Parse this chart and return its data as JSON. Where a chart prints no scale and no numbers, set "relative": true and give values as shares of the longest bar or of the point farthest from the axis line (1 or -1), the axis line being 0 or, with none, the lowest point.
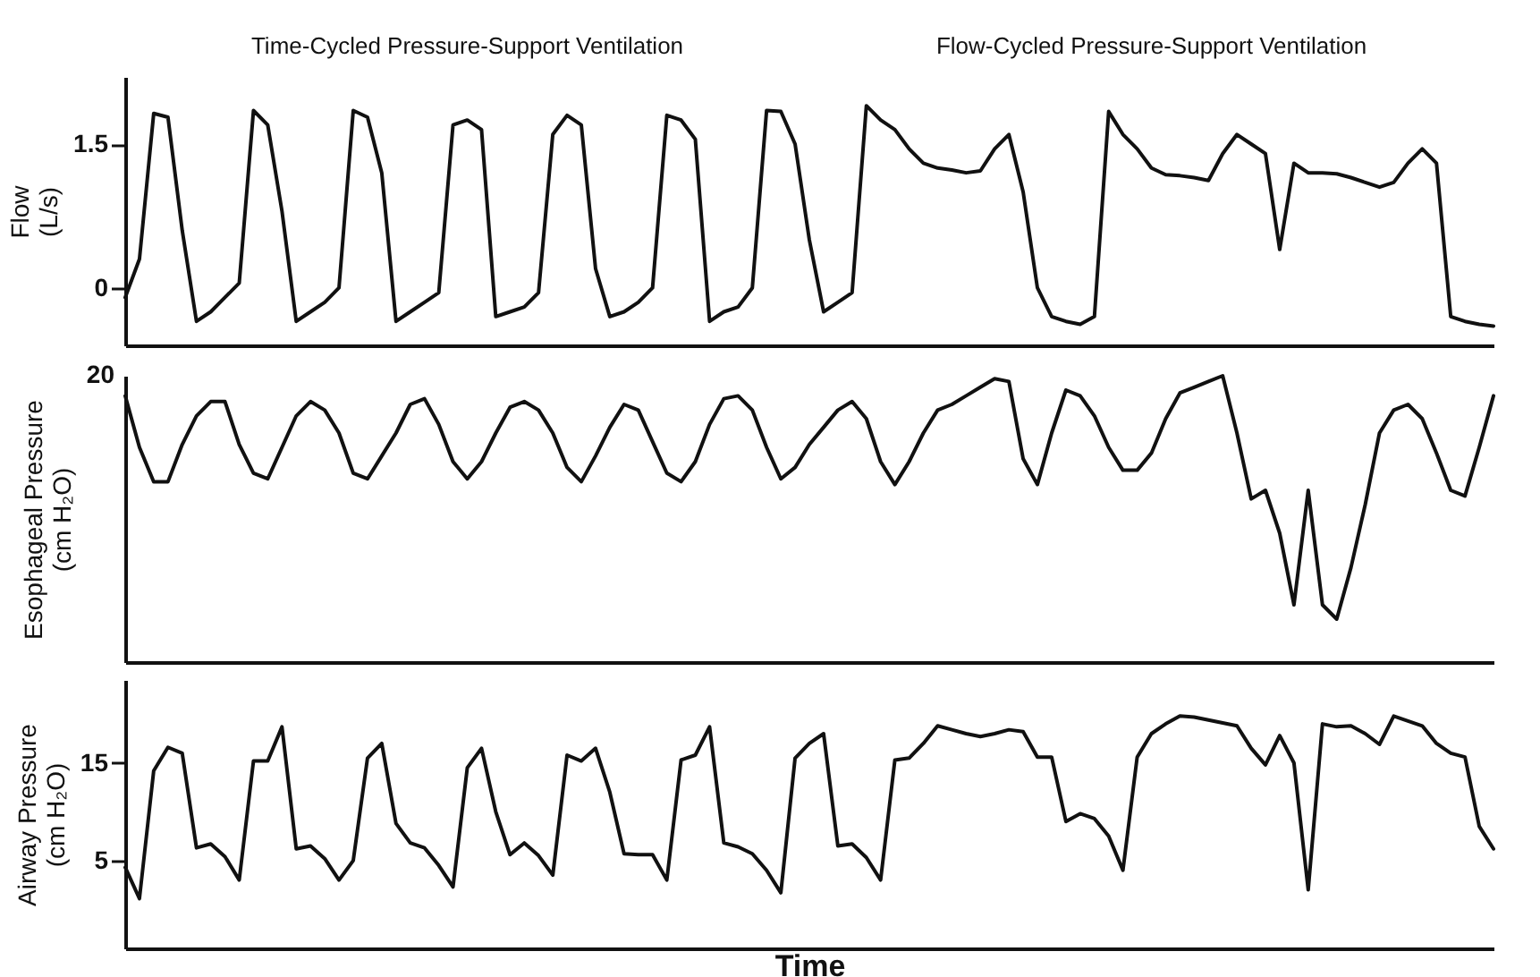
{
  "chart_data": [
    {
      "type": "line",
      "ylabel": "Flow\n(L/s)",
      "annotations": [
        "Time-Cycled Pressure-Support Ventilation",
        "Flow-Cycled Pressure-Support Ventilation"
      ],
      "tick_labels": "y",
      "ylim": [
        -0.6,
        2.2
      ],
      "yticks": [
        0,
        1.5
      ],
      "categories": [
        null,
        null,
        null,
        null,
        null,
        null,
        null,
        null,
        null,
        null,
        null,
        null,
        null,
        null,
        null,
        null,
        null,
        null,
        null,
        null,
        null,
        null,
        null,
        null,
        null,
        null,
        null,
        null,
        null,
        null,
        null,
        null,
        null,
        null,
        null,
        null,
        null,
        null,
        null,
        null,
        null,
        null,
        null,
        null,
        null,
        null,
        null,
        null,
        null,
        null,
        null,
        null,
        null,
        null,
        null,
        null,
        null,
        null,
        null,
        null,
        null,
        null,
        null,
        null,
        null,
        null,
        null,
        null,
        null,
        null,
        null,
        null,
        null,
        null,
        null,
        null,
        null,
        null,
        null,
        null,
        null,
        null,
        null,
        null,
        null,
        null,
        null,
        null,
        null,
        null,
        null,
        null,
        null,
        null,
        null,
        null,
        null
      ],
      "color": "#111111",
      "values": [
        -0.1,
        0.3,
        1.82,
        1.78,
        0.6,
        -0.35,
        -0.25,
        -0.1,
        0.05,
        1.85,
        1.7,
        0.8,
        -0.35,
        -0.25,
        -0.15,
        0.0,
        1.85,
        1.78,
        1.2,
        -0.35,
        -0.25,
        -0.15,
        -0.05,
        1.7,
        1.75,
        1.65,
        -0.3,
        -0.25,
        -0.2,
        -0.05,
        1.6,
        1.8,
        1.7,
        0.2,
        -0.3,
        -0.25,
        -0.15,
        0.0,
        1.8,
        1.75,
        1.55,
        -0.35,
        -0.25,
        -0.2,
        0.0,
        1.85,
        1.84,
        1.5,
        0.5,
        -0.25,
        -0.15,
        -0.05,
        1.9,
        1.75,
        1.65,
        1.45,
        1.3,
        1.25,
        1.23,
        1.2,
        1.22,
        1.45,
        1.6,
        1.0,
        0.0,
        -0.3,
        -0.35,
        -0.38,
        -0.3,
        1.84,
        1.6,
        1.45,
        1.25,
        1.18,
        1.17,
        1.15,
        1.12,
        1.4,
        1.6,
        1.5,
        1.4,
        0.4,
        1.3,
        1.2,
        1.2,
        1.19,
        1.15,
        1.1,
        1.05,
        1.1,
        1.3,
        1.45,
        1.3,
        -0.3,
        -0.35,
        -0.38,
        -0.4
      ]
    },
    {
      "type": "line",
      "ylabel": "Esophageal Pressure\n(cm H₂O)",
      "relative": true,
      "tick_labels": false,
      "annotations": [
        "20"
      ],
      "categories": [
        null,
        null,
        null,
        null,
        null,
        null,
        null,
        null,
        null,
        null,
        null,
        null,
        null,
        null,
        null,
        null,
        null,
        null,
        null,
        null,
        null,
        null,
        null,
        null,
        null,
        null,
        null,
        null,
        null,
        null,
        null,
        null,
        null,
        null,
        null,
        null,
        null,
        null,
        null,
        null,
        null,
        null,
        null,
        null,
        null,
        null,
        null,
        null,
        null,
        null,
        null,
        null,
        null,
        null,
        null,
        null,
        null,
        null,
        null,
        null,
        null,
        null,
        null,
        null,
        null,
        null,
        null,
        null,
        null,
        null,
        null,
        null,
        null,
        null,
        null,
        null,
        null,
        null,
        null,
        null,
        null,
        null,
        null,
        null,
        null,
        null,
        null,
        null,
        null,
        null,
        null,
        null,
        null,
        null,
        null,
        null,
        null
      ],
      "color": "#111111",
      "values": [
        0.93,
        0.75,
        0.63,
        0.63,
        0.76,
        0.86,
        0.91,
        0.91,
        0.76,
        0.66,
        0.64,
        0.75,
        0.86,
        0.91,
        0.88,
        0.8,
        0.66,
        0.64,
        0.72,
        0.8,
        0.9,
        0.92,
        0.83,
        0.7,
        0.64,
        0.7,
        0.8,
        0.89,
        0.91,
        0.88,
        0.8,
        0.68,
        0.63,
        0.72,
        0.82,
        0.9,
        0.88,
        0.77,
        0.66,
        0.63,
        0.7,
        0.83,
        0.92,
        0.93,
        0.88,
        0.75,
        0.64,
        0.68,
        0.76,
        0.82,
        0.88,
        0.91,
        0.85,
        0.7,
        0.62,
        0.7,
        0.8,
        0.88,
        0.9,
        0.93,
        0.96,
        0.99,
        0.98,
        0.71,
        0.62,
        0.8,
        0.95,
        0.93,
        0.86,
        0.75,
        0.67,
        0.67,
        0.73,
        0.85,
        0.94,
        0.96,
        0.98,
        1,
        0.8,
        0.57,
        0.6,
        0.45,
        0.2,
        0.6,
        0.2,
        0.15,
        0.33,
        0.55,
        0.8,
        0.88,
        0.9,
        0.85,
        0.73,
        0.6,
        0.58,
        0.75,
        0.93
      ]
    },
    {
      "type": "line",
      "ylabel": "Airway Pressure\n(cm H₂O)",
      "xlabel": "Time",
      "tick_labels": "y",
      "ylim": [
        -4,
        23.5
      ],
      "yticks": [
        5,
        15
      ],
      "categories": [
        null,
        null,
        null,
        null,
        null,
        null,
        null,
        null,
        null,
        null,
        null,
        null,
        null,
        null,
        null,
        null,
        null,
        null,
        null,
        null,
        null,
        null,
        null,
        null,
        null,
        null,
        null,
        null,
        null,
        null,
        null,
        null,
        null,
        null,
        null,
        null,
        null,
        null,
        null,
        null,
        null,
        null,
        null,
        null,
        null,
        null,
        null,
        null,
        null,
        null,
        null,
        null,
        null,
        null,
        null,
        null,
        null,
        null,
        null,
        null,
        null,
        null,
        null,
        null,
        null,
        null,
        null,
        null,
        null,
        null,
        null,
        null,
        null,
        null,
        null,
        null,
        null,
        null,
        null,
        null,
        null,
        null,
        null,
        null,
        null,
        null,
        null,
        null,
        null,
        null,
        null,
        null,
        null,
        null,
        null,
        null,
        null
      ],
      "color": "#111111",
      "values": [
        4.3,
        1.1,
        14.2,
        16.6,
        16,
        6.3,
        6.7,
        5.4,
        3,
        15.2,
        15.2,
        18.7,
        6.2,
        6.5,
        5.2,
        3,
        5,
        15.5,
        17,
        8.8,
        6.8,
        6.3,
        4.5,
        2.3,
        14.5,
        16.5,
        10,
        5.6,
        6.8,
        5.5,
        3.5,
        15.8,
        15.2,
        16.5,
        12,
        5.7,
        5.6,
        5.6,
        3,
        15.3,
        15.8,
        18.7,
        6.8,
        6.4,
        5.7,
        4,
        1.7,
        15.5,
        17,
        18,
        6.5,
        6.7,
        5.3,
        3,
        15.3,
        15.5,
        17,
        18.8,
        18.4,
        18,
        17.7,
        18,
        18.4,
        18.2,
        15.6,
        15.6,
        9,
        9.8,
        9.3,
        7.5,
        4,
        15.6,
        18,
        19,
        19.8,
        19.7,
        19.4,
        19.1,
        18.8,
        16.5,
        14.8,
        17.8,
        15,
        2,
        19,
        18.7,
        18.8,
        18,
        16.9,
        19.8,
        19.3,
        18.8,
        17,
        16,
        15.6,
        8.5,
        6.2
      ]
    }
  ]
}
